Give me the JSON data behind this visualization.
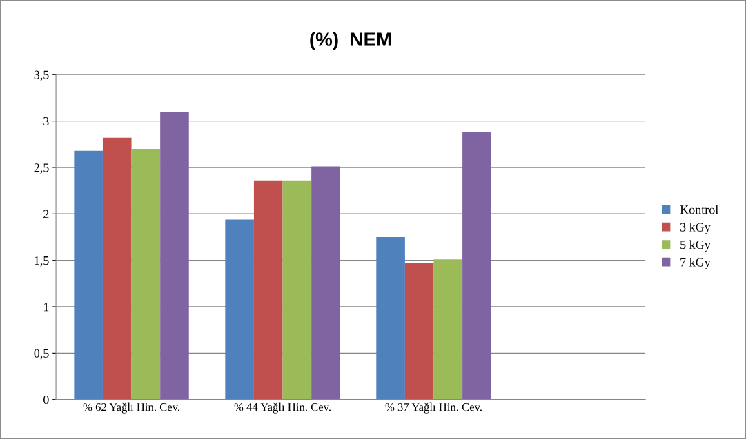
{
  "chart_data": {
    "type": "bar",
    "title": "(%)  NEM",
    "categories": [
      "% 62 Yağlı Hin. Cev.",
      "% 44 Yağlı Hin. Cev.",
      "% 37 Yağlı Hin. Cev."
    ],
    "series": [
      {
        "name": "Kontrol",
        "color": "#4f81bd",
        "values": [
          2.68,
          1.94,
          1.75
        ]
      },
      {
        "name": "3 kGy",
        "color": "#c0504d",
        "values": [
          2.82,
          2.36,
          1.47
        ]
      },
      {
        "name": "5 kGy",
        "color": "#9bbb59",
        "values": [
          2.7,
          2.36,
          1.51
        ]
      },
      {
        "name": "7 kGy",
        "color": "#8064a2",
        "values": [
          3.1,
          2.51,
          2.88
        ]
      }
    ],
    "ylim": [
      0,
      3.5
    ],
    "yticks": [
      0,
      {
        "value": 0.5,
        "label": "0,5"
      },
      1,
      {
        "value": 1.5,
        "label": "1,5"
      },
      2,
      {
        "value": 2.5,
        "label": "2,5"
      },
      3,
      {
        "value": 3.5,
        "label": "3,5"
      }
    ],
    "grid": "y",
    "legend": "right"
  }
}
